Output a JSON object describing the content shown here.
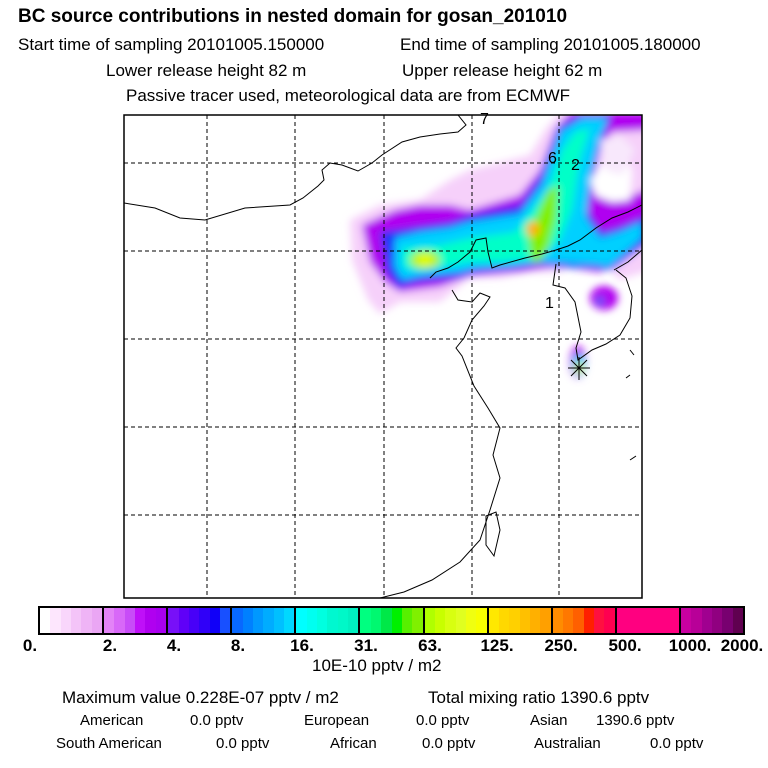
{
  "header": {
    "title": "BC  source contributions in nested domain for gosan_201010",
    "start_time": "Start time of sampling 20101005.150000",
    "end_time": "End time of sampling 20101005.180000",
    "lower_height": "Lower release height   82 m",
    "upper_height": "Upper release height   62 m",
    "note": "Passive tracer used, meteorological data are from ECMWF"
  },
  "map": {
    "labels": [
      "7",
      "6",
      "2",
      "1"
    ],
    "receptor_marker": "star-icon"
  },
  "colorbar": {
    "labels": [
      "0.",
      "2.",
      "4.",
      "8.",
      "16.",
      "31.",
      "63.",
      "125.",
      "250.",
      "500.",
      "1000.",
      "2000."
    ],
    "unit": "10E-10 pptv / m2",
    "segments": [
      [
        "#ffffff",
        "#fde6fd",
        "#f9d6fb",
        "#f4c4f8",
        "#efb4f6",
        "#eaa6f4"
      ],
      [
        "#e383f7",
        "#d868f8",
        "#c84cf8",
        "#bf10f8",
        "#b000f0",
        "#a800f0"
      ],
      [
        "#7810f8",
        "#6000f8",
        "#4800f8",
        "#3000f8",
        "#1000f8",
        "#1850ff"
      ],
      [
        "#0868ff",
        "#0080ff",
        "#0098ff",
        "#00acff",
        "#00c0ff",
        "#00d8ff"
      ],
      [
        "#00ffff",
        "#00fff0",
        "#00ffe0",
        "#00f8d0",
        "#00f8c8",
        "#00f0c0"
      ],
      [
        "#00ff80",
        "#00f870",
        "#00e848",
        "#00f000",
        "#58f000",
        "#80f000"
      ],
      [
        "#b0ff00",
        "#c8ff00",
        "#d8ff10",
        "#e0ff20",
        "#f0ff10",
        "#f8ff00"
      ],
      [
        "#ffe800",
        "#ffd800",
        "#ffd000",
        "#ffc000",
        "#ffb000",
        "#ffa000"
      ],
      [
        "#ff8c00",
        "#ff7800",
        "#ff6000",
        "#ff2000",
        "#ff1040",
        "#ff0050"
      ],
      [
        "#ff0080",
        "#ff0080",
        "#ff0080",
        "#ff0080",
        "#ff0080",
        "#ff0080"
      ],
      [
        "#c800a0",
        "#b80098",
        "#a00090",
        "#900080",
        "#780070",
        "#600050"
      ]
    ]
  },
  "summary": {
    "max_label": "Maximum value  0.228E-07 pptv / m2",
    "total_label": "Total mixing ratio     1390.6 pptv",
    "rows": [
      [
        {
          "name": "American",
          "value": "0.0 pptv"
        },
        {
          "name": "European",
          "value": "0.0 pptv"
        },
        {
          "name": "Asian",
          "value": "1390.6 pptv"
        }
      ],
      [
        {
          "name": "South American",
          "value": "0.0 pptv"
        },
        {
          "name": "African",
          "value": "0.0 pptv"
        },
        {
          "name": "Australian",
          "value": "0.0 pptv"
        }
      ]
    ]
  }
}
